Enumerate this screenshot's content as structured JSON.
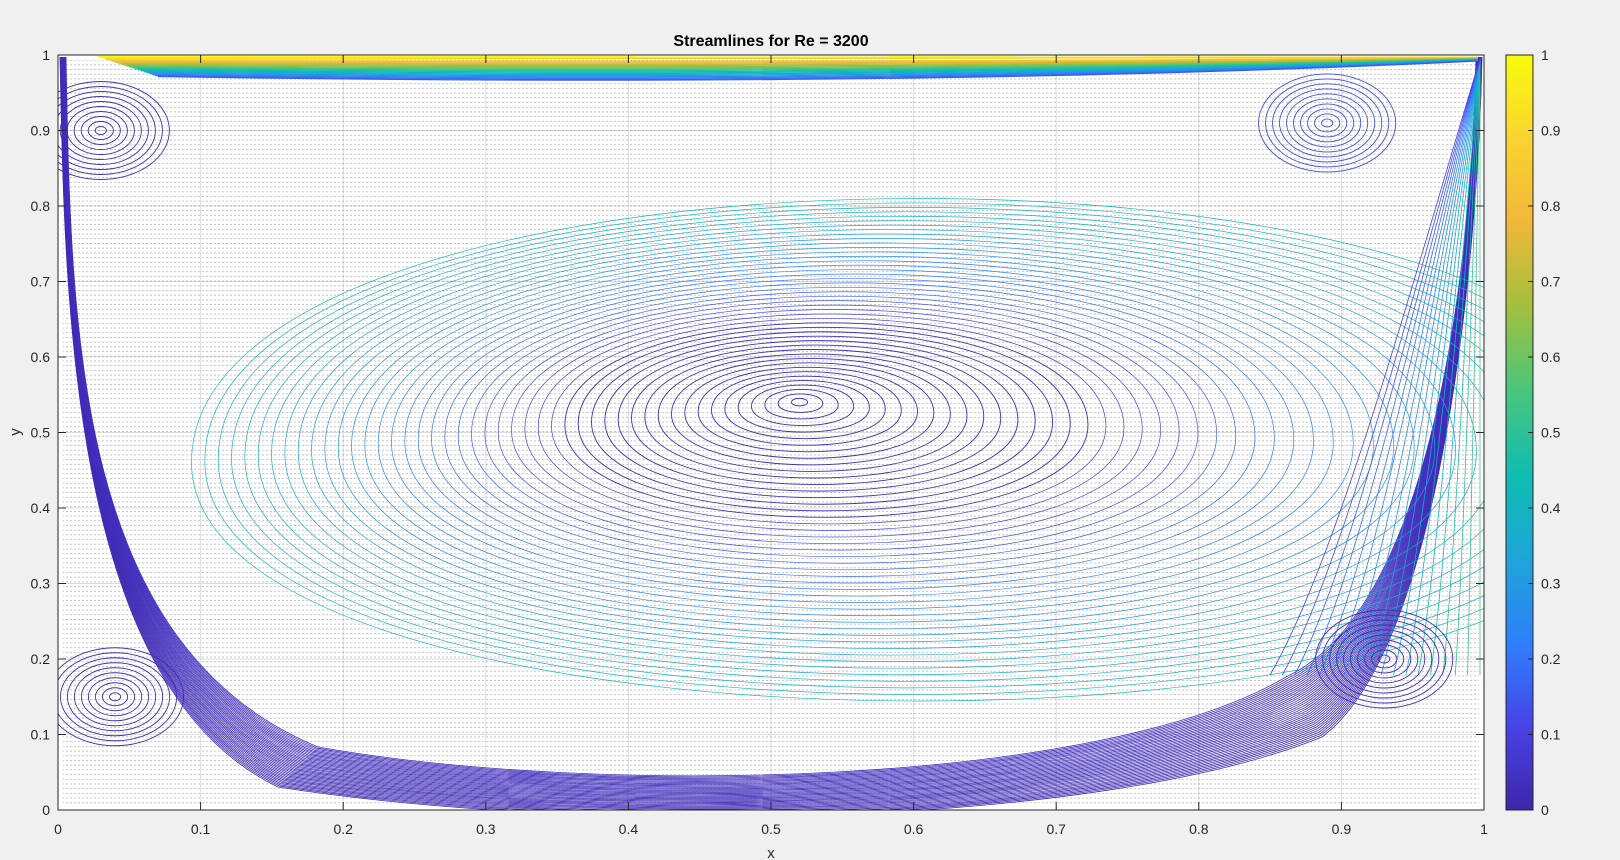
{
  "chart_data": {
    "type": "contour",
    "title": "Streamlines for Re = 3200",
    "xlabel": "x",
    "ylabel": "y",
    "xlim": [
      0,
      1
    ],
    "ylim": [
      0,
      1
    ],
    "xticks": [
      "0",
      "0.1",
      "0.2",
      "0.3",
      "0.4",
      "0.5",
      "0.6",
      "0.7",
      "0.8",
      "0.9",
      "1"
    ],
    "yticks": [
      "0",
      "0.1",
      "0.2",
      "0.3",
      "0.4",
      "0.5",
      "0.6",
      "0.7",
      "0.8",
      "0.9",
      "1"
    ],
    "grid": true,
    "colormap": "parula",
    "colorbar": {
      "position": "right",
      "limits": [
        0,
        1
      ],
      "ticks": [
        "0",
        "0.1",
        "0.2",
        "0.3",
        "0.4",
        "0.5",
        "0.6",
        "0.7",
        "0.8",
        "0.9",
        "1"
      ]
    },
    "primary_vortex_center": [
      0.52,
      0.54
    ],
    "secondary_vortices": [
      {
        "location": "bottom-left",
        "center": [
          0.04,
          0.15
        ]
      },
      {
        "location": "bottom-right",
        "center": [
          0.93,
          0.2
        ]
      },
      {
        "location": "top-left",
        "center": [
          0.03,
          0.9
        ]
      },
      {
        "location": "top-right",
        "center": [
          0.89,
          0.91
        ]
      }
    ],
    "overlay": "velocity-vectors"
  },
  "colors": {
    "background": "#f0f0f0",
    "axes": "#ffffff",
    "parula": [
      "#3e26a8",
      "#4743e6",
      "#2f7ffb",
      "#1fa4d9",
      "#0fbcb2",
      "#4cc67a",
      "#a6bf3c",
      "#f1b83a",
      "#f9d42f",
      "#f9fb0e"
    ]
  }
}
